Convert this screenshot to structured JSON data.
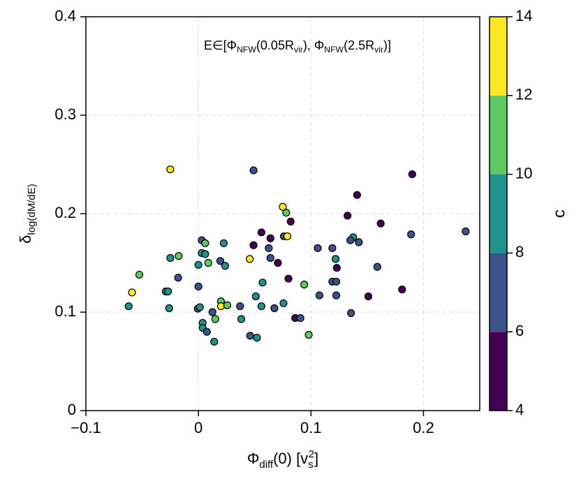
{
  "chart_data": {
    "type": "scatter",
    "annotation": [
      {
        "t": "E∈[Φ"
      },
      {
        "t": "NFW",
        "sub": true
      },
      {
        "t": "(0.05R"
      },
      {
        "t": "vir",
        "sub": true
      },
      {
        "t": "), Φ"
      },
      {
        "t": "NFW",
        "sub": true
      },
      {
        "t": "(2.5R"
      },
      {
        "t": "vir",
        "sub": true
      },
      {
        "t": ")]"
      }
    ],
    "x_label": [
      {
        "t": "Φ"
      },
      {
        "t": "diff",
        "sub": true
      },
      {
        "t": "(0)  [v"
      },
      {
        "t": "s",
        "sub": true
      },
      {
        "t": "2",
        "sup": true
      },
      {
        "t": "]"
      }
    ],
    "y_label": [
      {
        "t": "δ"
      },
      {
        "t": "log(dM/dE)",
        "sub": true
      }
    ],
    "colorbar_label": "c",
    "xlim": [
      -0.1,
      0.25
    ],
    "ylim": [
      0,
      0.4
    ],
    "xticks": [
      {
        "value": -0.1,
        "label": "−0.1"
      },
      0,
      0.1,
      0.2
    ],
    "yticks": [
      0,
      0.1,
      0.2,
      0.3,
      0.4
    ],
    "grid": true,
    "colorbar_ticks": [
      4,
      6,
      8,
      10,
      12,
      14
    ],
    "colors": [
      "#440154",
      "#3b528b",
      "#21918c",
      "#5ec962",
      "#fde725"
    ],
    "x": [
      -0.025,
      0.049,
      0.19,
      0.141,
      0.075,
      0.078,
      0.1325,
      0.082,
      0.162,
      0.2375,
      0.189,
      0.056,
      0.064,
      0.076,
      0.079,
      0.1375,
      0.135,
      0.1425,
      0.003,
      0.006,
      0.0225,
      0.049,
      0.0625,
      0.106,
      0.119,
      0.003,
      0.006,
      -0.0175,
      -0.025,
      0.0456,
      0.064,
      0.1219,
      0.0194,
      0.00875,
      0.0706,
      0.02375,
      0,
      0.123,
      0.159,
      -0.0525,
      -0.018,
      0.08,
      0.057,
      0.119,
      0.1225,
      0.094,
      0,
      -0.029,
      -0.027,
      -0.059,
      0.181,
      0.151,
      0.051,
      0.1075,
      0.1225,
      0.02,
      -0.062,
      -0.026,
      0.02,
      0.0256,
      0.037,
      0.056,
      0.0756,
      0.0675,
      -0.0006,
      0.00125,
      0.0125,
      0.1356,
      0.086,
      0.0906,
      0.015,
      0.0381,
      0.00375,
      0.00375,
      0.0075,
      0.098,
      0.046,
      0.052,
      0.014
    ],
    "y": [
      0.245,
      0.244,
      0.24,
      0.219,
      0.207,
      0.201,
      0.198,
      0.192,
      0.19,
      0.182,
      0.179,
      0.181,
      0.175,
      0.177,
      0.177,
      0.176,
      0.173,
      0.171,
      0.173,
      0.17,
      0.17,
      0.168,
      0.165,
      0.165,
      0.165,
      0.16,
      0.159,
      0.157,
      0.155,
      0.154,
      0.155,
      0.154,
      0.152,
      0.15,
      0.15,
      0.147,
      0.148,
      0.145,
      0.146,
      0.138,
      0.135,
      0.134,
      0.13,
      0.131,
      0.131,
      0.128,
      0.126,
      0.121,
      0.121,
      0.12,
      0.123,
      0.116,
      0.116,
      0.117,
      0.117,
      0.111,
      0.106,
      0.104,
      0.106,
      0.107,
      0.106,
      0.106,
      0.109,
      0.104,
      0.1035,
      0.105,
      0.1,
      0.099,
      0.094,
      0.094,
      0.093,
      0.093,
      0.089,
      0.084,
      0.08,
      0.077,
      0.076,
      0.074,
      0.07
    ],
    "c": [
      13,
      7,
      5,
      5,
      13,
      11,
      5,
      5,
      5,
      7,
      7,
      5,
      5,
      7,
      13,
      9,
      7,
      7,
      7,
      11,
      9,
      5,
      7,
      7,
      7,
      9,
      9,
      11,
      9,
      13,
      7,
      9,
      7,
      11,
      5,
      9,
      9,
      5,
      7,
      11,
      7,
      5,
      9,
      7,
      7,
      11,
      7,
      9,
      9,
      13,
      5,
      5,
      9,
      7,
      7,
      11,
      9,
      9,
      13,
      11,
      7,
      9,
      9,
      7,
      7,
      9,
      7,
      7,
      5,
      7,
      11,
      9,
      9,
      9,
      7,
      11,
      7,
      9,
      9
    ]
  }
}
